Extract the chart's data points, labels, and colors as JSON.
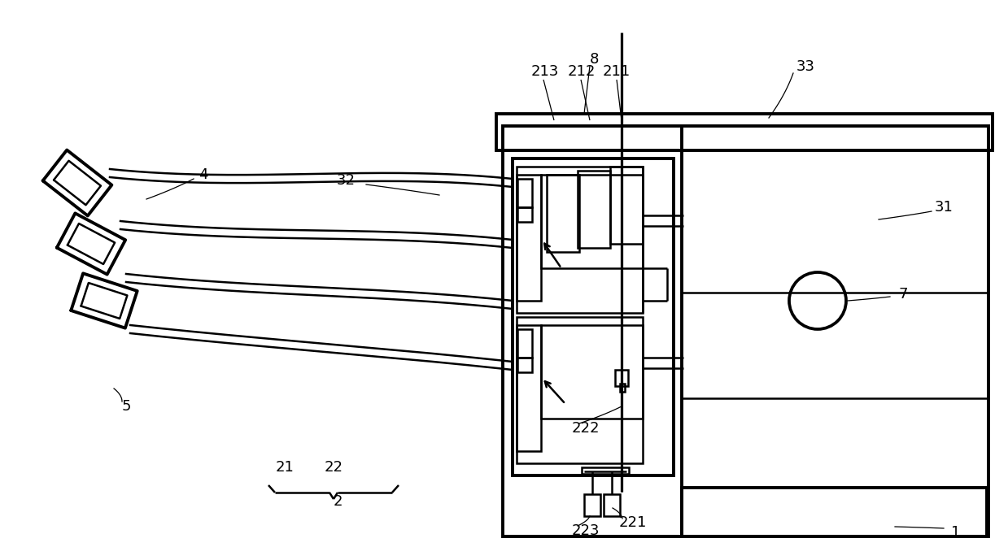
{
  "bg_color": "#ffffff",
  "line_color": "#000000",
  "lw": 1.8,
  "tlw": 2.8,
  "fig_width": 12.39,
  "fig_height": 6.89
}
